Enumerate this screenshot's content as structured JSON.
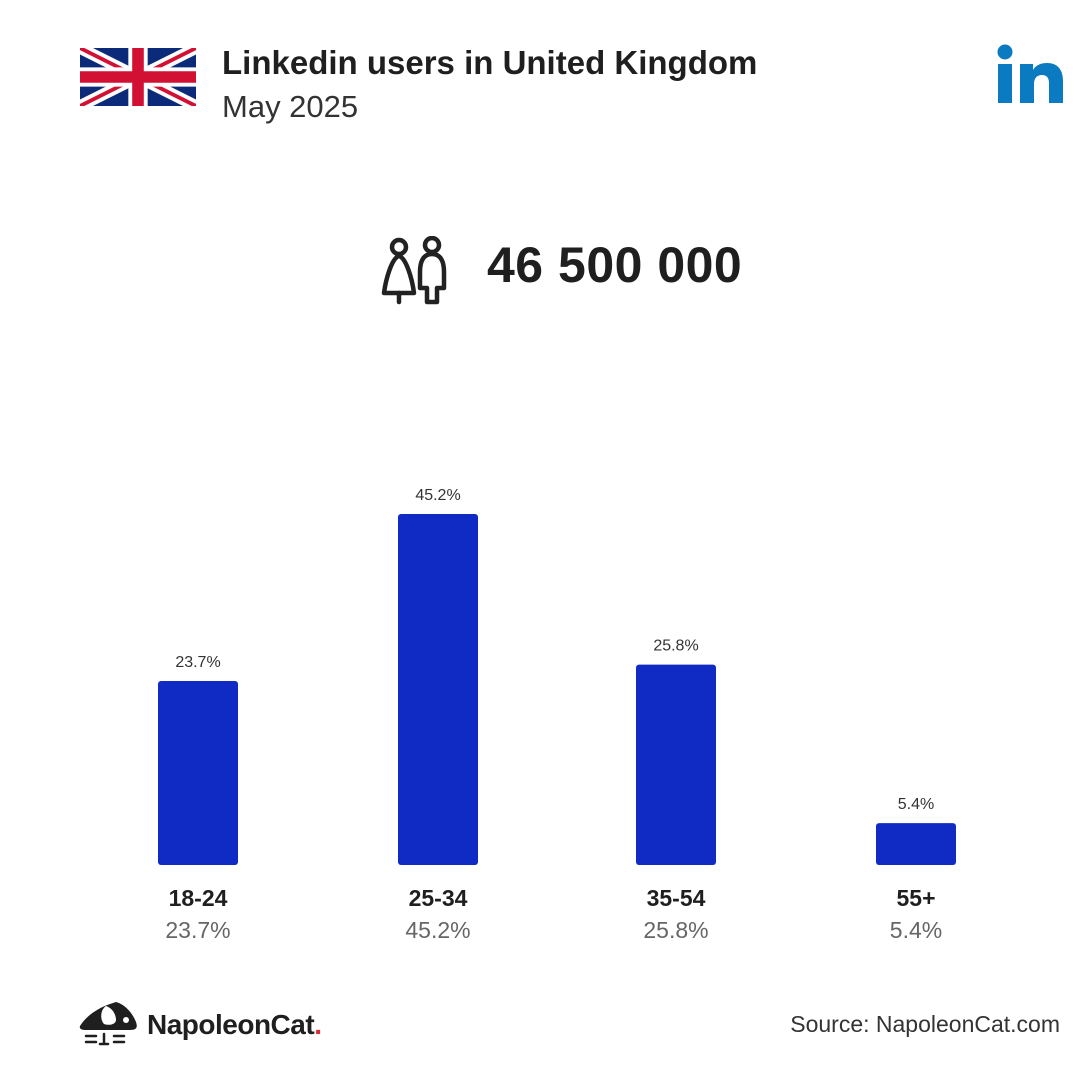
{
  "header": {
    "title": "Linkedin users in United Kingdom",
    "subtitle": "May 2025"
  },
  "summary": {
    "total_users": "46 500 000"
  },
  "icons": {
    "flag": "united-kingdom-flag-icon",
    "platform": "linkedin-logo-icon",
    "users": "users-icon",
    "brand": "napoleoncat-logo-icon"
  },
  "colors": {
    "bar": "#0f2bc4",
    "linkedin": "#0a7ac1",
    "brand_dot": "#e0282e",
    "flag_blue": "#0b2a7a",
    "flag_red": "#d21034"
  },
  "chart_data": {
    "type": "bar",
    "categories": [
      "18-24",
      "25-34",
      "35-54",
      "55+"
    ],
    "values": [
      23.7,
      45.2,
      25.8,
      5.4
    ],
    "data_labels": [
      "23.7%",
      "45.2%",
      "25.8%",
      "5.4%"
    ],
    "category_percent_labels": [
      "23.7%",
      "45.2%",
      "25.8%",
      "5.4%"
    ],
    "ylim": [
      0,
      45.2
    ],
    "grid": false,
    "legend": "none"
  },
  "footer": {
    "brand_name": "NapoleonCat",
    "brand_dot": ".",
    "source": "Source: NapoleonCat.com"
  }
}
